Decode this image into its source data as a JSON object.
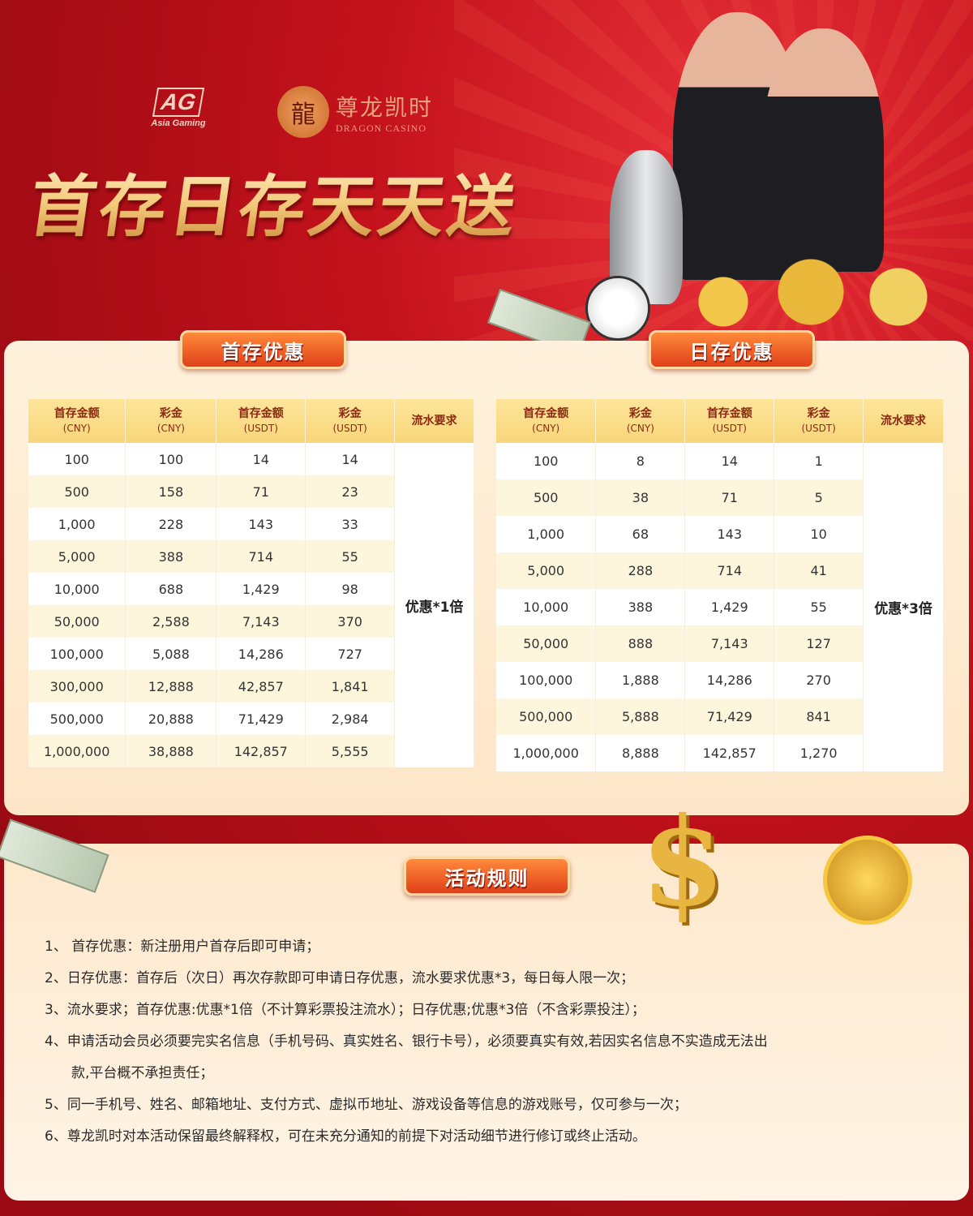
{
  "brand": {
    "ag_logo": "AG",
    "ag_name": "Asia Gaming",
    "dragon_cn": "尊龙凯时",
    "dragon_en": "DRAGON CASINO"
  },
  "title": "首存日存天天送",
  "first_deposit": {
    "ribbon": "首存优惠",
    "headers": [
      [
        "首存金额",
        "(CNY)"
      ],
      [
        "彩金",
        "(CNY)"
      ],
      [
        "首存金额",
        "(USDT)"
      ],
      [
        "彩金",
        "(USDT)"
      ],
      [
        "流水要求",
        ""
      ]
    ],
    "rows": [
      [
        "100",
        "100",
        "14",
        "14"
      ],
      [
        "500",
        "158",
        "71",
        "23"
      ],
      [
        "1,000",
        "228",
        "143",
        "33"
      ],
      [
        "5,000",
        "388",
        "714",
        "55"
      ],
      [
        "10,000",
        "688",
        "1,429",
        "98"
      ],
      [
        "50,000",
        "2,588",
        "7,143",
        "370"
      ],
      [
        "100,000",
        "5,088",
        "14,286",
        "727"
      ],
      [
        "300,000",
        "12,888",
        "42,857",
        "1,841"
      ],
      [
        "500,000",
        "20,888",
        "71,429",
        "2,984"
      ],
      [
        "1,000,000",
        "38,888",
        "142,857",
        "5,555"
      ]
    ],
    "requirement": "优惠*1倍"
  },
  "daily_deposit": {
    "ribbon": "日存优惠",
    "headers": [
      [
        "首存金额",
        "(CNY)"
      ],
      [
        "彩金",
        "(CNY)"
      ],
      [
        "首存金额",
        "(USDT)"
      ],
      [
        "彩金",
        "(USDT)"
      ],
      [
        "流水要求",
        ""
      ]
    ],
    "rows": [
      [
        "100",
        "8",
        "14",
        "1"
      ],
      [
        "500",
        "38",
        "71",
        "5"
      ],
      [
        "1,000",
        "68",
        "143",
        "10"
      ],
      [
        "5,000",
        "288",
        "714",
        "41"
      ],
      [
        "10,000",
        "388",
        "1,429",
        "55"
      ],
      [
        "50,000",
        "888",
        "7,143",
        "127"
      ],
      [
        "100,000",
        "1,888",
        "14,286",
        "270"
      ],
      [
        "500,000",
        "5,888",
        "71,429",
        "841"
      ],
      [
        "1,000,000",
        "8,888",
        "142,857",
        "1,270"
      ]
    ],
    "requirement": "优惠*3倍"
  },
  "rules": {
    "ribbon": "活动规则",
    "items": [
      "1、 首存优惠：新注册用户首存后即可申请；",
      "2、日存优惠：首存后（次日）再次存款即可申请日存优惠，流水要求优惠*3，每日每人限一次；",
      "3、流水要求；首存优惠:优惠*1倍（不计算彩票投注流水）；日存优惠;优惠*3倍（不含彩票投注）；",
      "4、申请活动会员必须要完实名信息（手机号码、真实姓名、银行卡号），必须要真实有效,若因实名信息不实造成无法出",
      "款,平台概不承担责任；",
      "5、同一手机号、姓名、邮箱地址、支付方式、虚拟币地址、游戏设备等信息的游戏账号，仅可参与一次；",
      "6、尊龙凯时对本活动保留最终解释权，可在未充分通知的前提下对活动细节进行修订或终止活动。"
    ]
  },
  "colors": {
    "background": "#c4121c",
    "panel": "#fff1dc",
    "header": "#f8d67a",
    "ribbon": "#e0401a",
    "title_gold": "#f2c878"
  }
}
